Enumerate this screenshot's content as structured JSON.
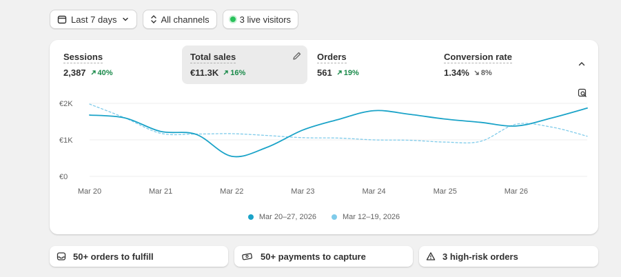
{
  "toolbar": {
    "date_range": "Last 7 days",
    "channels": "All channels",
    "live_visitors": "3 live visitors"
  },
  "metrics": [
    {
      "label": "Sessions",
      "value": "2,387",
      "change": "40%",
      "direction": "up"
    },
    {
      "label": "Total sales",
      "value": "€11.3K",
      "change": "16%",
      "direction": "up",
      "active": true
    },
    {
      "label": "Orders",
      "value": "561",
      "change": "19%",
      "direction": "up"
    },
    {
      "label": "Conversion rate",
      "value": "1.34%",
      "change": "8%",
      "direction": "down"
    }
  ],
  "chart_data": {
    "type": "line",
    "y_ticks": [
      "€2K",
      "€1K",
      "€0"
    ],
    "x_ticks": [
      "Mar 20",
      "Mar 21",
      "Mar 22",
      "Mar 23",
      "Mar 24",
      "Mar 25",
      "Mar 26"
    ],
    "ylim": [
      0,
      2000
    ],
    "grid": true,
    "legend_position": "bottom",
    "series": [
      {
        "name": "Mar 20–27, 2026",
        "color": "#1aa3c8",
        "style": "solid",
        "x": [
          0,
          0.5,
          1,
          1.5,
          2,
          2.5,
          3,
          3.5,
          4,
          4.5,
          5,
          5.5,
          6,
          6.5,
          7
        ],
        "values": [
          1680,
          1600,
          1230,
          1150,
          550,
          800,
          1270,
          1560,
          1800,
          1700,
          1570,
          1480,
          1380,
          1600,
          1870
        ]
      },
      {
        "name": "Mar 12–19, 2026",
        "color": "#7fcbea",
        "style": "dashed",
        "x": [
          0,
          0.5,
          1,
          1.5,
          2,
          2.5,
          3,
          3.5,
          4,
          4.5,
          5,
          5.5,
          6,
          6.5,
          7
        ],
        "values": [
          1980,
          1600,
          1180,
          1160,
          1170,
          1120,
          1060,
          1050,
          1000,
          990,
          940,
          960,
          1430,
          1350,
          1100
        ]
      }
    ]
  },
  "legend": {
    "current": "Mar 20–27, 2026",
    "previous": "Mar 12–19, 2026"
  },
  "actions": [
    {
      "label": "50+ orders to fulfill",
      "icon": "inbox-icon"
    },
    {
      "label": "50+ payments to capture",
      "icon": "cash-icon"
    },
    {
      "label": "3 high-risk orders",
      "icon": "alert-triangle-icon"
    }
  ],
  "colors": {
    "accent": "#1aa3c8",
    "accent_light": "#7fcbea",
    "positive": "#1a8a4a",
    "live_dot": "#29c15b"
  }
}
